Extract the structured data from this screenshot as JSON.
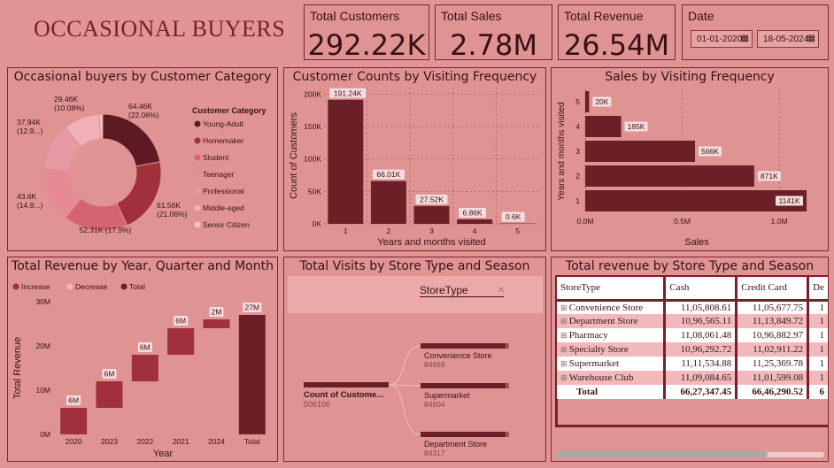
{
  "title": "OCCASIONAL BUYERS",
  "kpis": {
    "customers": {
      "label": "Total Customers",
      "value": "292.22K"
    },
    "sales": {
      "label": "Total Sales",
      "value": "2.78M"
    },
    "revenue": {
      "label": "Total Revenue",
      "value": "26.54M"
    }
  },
  "date": {
    "label": "Date",
    "start": "01-01-2020",
    "end": "18-05-2024"
  },
  "donut": {
    "title": "Occasional buyers by Customer Category",
    "legend_title": "Customer Category",
    "labels": [
      "64.46K\n(22.06%)",
      "61.56K\n(21.06%)",
      "52.31K (17.9%)",
      "43.6K\n(14.9...)",
      "37.94K\n(12.9...)",
      "29.46K\n(10.08%)"
    ]
  },
  "freq": {
    "title": "Customer Counts by Visiting Frequency"
  },
  "sales_freq": {
    "title": "Sales by Visiting Frequency"
  },
  "waterfall": {
    "title": "Total Revenue by Year, Quarter and Month",
    "legend": [
      "Increase",
      "Decrease",
      "Total"
    ]
  },
  "decomp": {
    "title": "Total Visits by Store Type and Season",
    "header": "StoreType",
    "close": "×",
    "root_label": "Count of Custome...",
    "root_value": "506106",
    "nodes": [
      {
        "name": "Convenience Store",
        "value": "84669"
      },
      {
        "name": "Supermarket",
        "value": "84604"
      },
      {
        "name": "Department Store",
        "value": "84317"
      }
    ]
  },
  "table": {
    "title": "Total revenue by Store Type and Season",
    "headers": [
      "StoreType",
      "Cash",
      "Credit Card",
      "De"
    ],
    "rows": [
      {
        "name": "Convenience Store",
        "cash": "11,05,808.61",
        "credit": "11,05,677.75",
        "debit": "1"
      },
      {
        "name": "Department Store",
        "cash": "10,96,565.11",
        "credit": "11,13,849.72",
        "debit": "1"
      },
      {
        "name": "Pharmacy",
        "cash": "11,08,061.48",
        "credit": "10,96,882.97",
        "debit": "1"
      },
      {
        "name": "Specialty Store",
        "cash": "10,96,292.72",
        "credit": "11,02,911.22",
        "debit": "1"
      },
      {
        "name": "Supermarket",
        "cash": "11,11,534.88",
        "credit": "11,25,369.78",
        "debit": "1"
      },
      {
        "name": "Warehouse Club",
        "cash": "11,09,084.65",
        "credit": "11,01,599.08",
        "debit": "1"
      }
    ],
    "total": {
      "name": "Total",
      "cash": "66,27,347.45",
      "credit": "66,46,290.52",
      "debit": "6"
    }
  },
  "chart_data": [
    {
      "type": "pie",
      "title": "Occasional buyers by Customer Category",
      "legend_title": "Customer Category",
      "legend_position": "right",
      "categories": [
        "Young-Adult",
        "Homemaker",
        "Student",
        "Teenager",
        "Professional",
        "Middle-aged",
        "Senior Citizen"
      ],
      "values": [
        64.46,
        61.56,
        52.31,
        43.6,
        37.94,
        29.46,
        2.89
      ],
      "colors": [
        "#5e1a22",
        "#a0303a",
        "#d66470",
        "#e88a96",
        "#e79aa3",
        "#efb0b6",
        "#f4c3c6"
      ]
    },
    {
      "type": "bar",
      "title": "Customer Counts by Visiting Frequency",
      "xlabel": "Years and months visited",
      "ylabel": "Count of Customers",
      "categories": [
        "1",
        "2",
        "3",
        "4",
        "5"
      ],
      "values": [
        191.24,
        66.01,
        27.52,
        6.86,
        0.6
      ],
      "data_labels": [
        "191.24K",
        "66.01K",
        "27.52K",
        "6.86K",
        "0.6K"
      ],
      "yticks": [
        "0K",
        "50K",
        "100K",
        "150K",
        "200K"
      ],
      "ylim": [
        0,
        210
      ]
    },
    {
      "type": "bar",
      "orientation": "horizontal",
      "title": "Sales by Visiting Frequency",
      "xlabel": "Sales",
      "ylabel": "Years and months visited",
      "categories": [
        "5",
        "4",
        "3",
        "2",
        "1"
      ],
      "values": [
        20,
        185,
        566,
        871,
        1141
      ],
      "data_labels": [
        "20K",
        "185K",
        "566K",
        "871K",
        "1141K"
      ],
      "xticks": [
        "0.0M",
        "0.5M",
        "1.0M"
      ],
      "xlim": [
        0,
        1.15
      ]
    },
    {
      "type": "bar",
      "subtype": "waterfall",
      "title": "Total Revenue by Year, Quarter and Month",
      "xlabel": "Year",
      "ylabel": "Total Revenue",
      "categories": [
        "2020",
        "2023",
        "2022",
        "2021",
        "2024",
        "Total"
      ],
      "values": [
        6,
        6,
        6,
        6,
        2,
        27
      ],
      "data_labels": [
        "6M",
        "6M",
        "6M",
        "6M",
        "2M",
        "27M"
      ],
      "yticks": [
        "0M",
        "10M",
        "20M",
        "30M"
      ],
      "ylim": [
        0,
        30
      ],
      "legend": [
        "Increase",
        "Decrease",
        "Total"
      ]
    }
  ]
}
